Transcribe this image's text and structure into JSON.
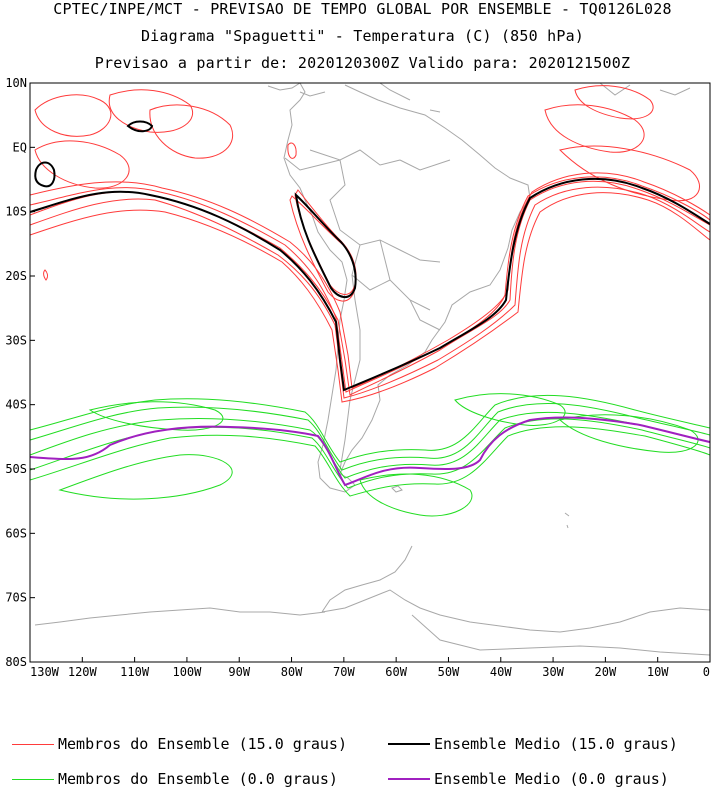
{
  "header": {
    "line1": "CPTEC/INPE/MCT - PREVISAO DE TEMPO GLOBAL POR ENSEMBLE - TQ0126L028",
    "line2": "Diagrama \"Spaguetti\" - Temperatura (C) (850 hPa)",
    "line3": "Previsao a partir de: 2020120300Z  Valido para: 2020121500Z"
  },
  "map": {
    "lat_ticks": [
      "10N",
      "EQ",
      "10S",
      "20S",
      "30S",
      "40S",
      "50S",
      "60S",
      "70S",
      "80S"
    ],
    "lon_ticks": [
      "130W",
      "120W",
      "110W",
      "100W",
      "90W",
      "80W",
      "70W",
      "60W",
      "50W",
      "40W",
      "30W",
      "20W",
      "10W",
      "0"
    ],
    "lat_range": [
      10,
      -80
    ],
    "lon_range": [
      -130,
      0
    ]
  },
  "legend": {
    "items": [
      {
        "label": "Membros do Ensemble (15.0 graus)",
        "color": "#ff3b3b"
      },
      {
        "label": "Ensemble Medio (15.0 graus)",
        "color": "#000000"
      },
      {
        "label": "Membros do Ensemble (0.0 graus)",
        "color": "#22dd22"
      },
      {
        "label": "Ensemble Medio (0.0 graus)",
        "color": "#a020c0"
      }
    ]
  },
  "colors": {
    "coast": "#a8a8a8",
    "red_members": "#ff3b3b",
    "green_members": "#22dd22",
    "black_mean": "#000000",
    "purple_mean": "#a020c0"
  }
}
